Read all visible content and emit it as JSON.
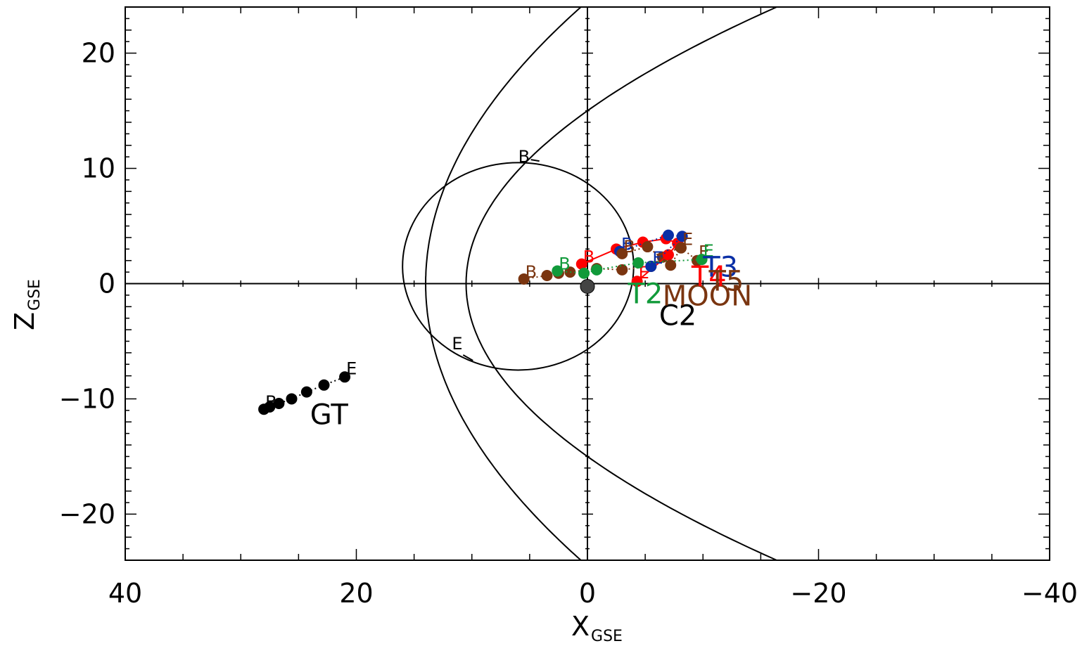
{
  "chart_data": {
    "type": "scatter",
    "title": "",
    "xlabel": "X",
    "xlabel_sub": "GSE",
    "ylabel": "Z",
    "ylabel_sub": "GSE",
    "xlim": [
      40,
      -40
    ],
    "ylim": [
      -24,
      24
    ],
    "x_reversed": true,
    "x_ticks": [
      40,
      20,
      0,
      -20,
      -40
    ],
    "x_tick_labels": [
      "40",
      "20",
      "0",
      "−20",
      "−40"
    ],
    "y_ticks": [
      20,
      10,
      0,
      -10,
      -20
    ],
    "y_tick_labels": [
      "20",
      "10",
      "0",
      "−10",
      "−20"
    ],
    "grid": false,
    "colors": {
      "black": "#000000",
      "blue": "#0a2fa6",
      "red": "#ff0000",
      "green": "#119a3a",
      "brown": "#7a3510"
    },
    "boundaries": [
      {
        "name": "bow_shock",
        "kind": "parabola",
        "nose_x": 14,
        "r_at_x0": 24.5
      },
      {
        "name": "magnetopause",
        "kind": "parabola",
        "nose_x": 10.5,
        "r_at_x0": 15
      }
    ],
    "orbits": [
      {
        "name": "C2",
        "center": [
          6,
          1.5
        ],
        "rx": 10,
        "ry": 9,
        "color": "black",
        "begin_label": "B",
        "begin": [
          5.5,
          11
        ],
        "end_label": "E",
        "end": [
          11,
          -5.7
        ]
      }
    ],
    "series": [
      {
        "name": "GT",
        "color": "black",
        "x": [
          28,
          27.5,
          26.7,
          25.6,
          24.3,
          22.8,
          21
        ],
        "y": [
          -10.9,
          -10.7,
          -10.4,
          -10,
          -9.4,
          -8.8,
          -8.1
        ],
        "begin_label": "B",
        "end_label": "E"
      },
      {
        "name": "MOON",
        "color": "brown",
        "x": [
          5.5,
          3.5,
          2.5,
          1.5,
          -0.8,
          -3,
          -5.5,
          -6.5,
          -8,
          -9.5
        ],
        "y": [
          0.4,
          0.7,
          0.9,
          1.0,
          1.3,
          1.2,
          1.5,
          2.3,
          3.2,
          2
        ],
        "begin_label": "B",
        "end_label": "E"
      },
      {
        "name": "T4",
        "color": "red",
        "x": [
          0.5,
          -2.5,
          -4.8,
          -6.8,
          -7.8,
          -7,
          -4.3
        ],
        "y": [
          1.7,
          3,
          3.6,
          3.9,
          3.5,
          2.5,
          0.2
        ],
        "begin_label": "B",
        "end_label": "E"
      },
      {
        "name": "T3",
        "color": "blue",
        "x": [
          -2.8,
          -7,
          -8.2,
          -5.5
        ],
        "y": [
          2.8,
          4.2,
          4.1,
          1.5
        ],
        "begin_label": "B",
        "end_label": "E"
      },
      {
        "name": "T2",
        "color": "green",
        "x": [
          2.6,
          0.3,
          -0.8,
          -4.4,
          -9.9
        ],
        "y": [
          1.1,
          0.9,
          1.2,
          1.8,
          2.1
        ],
        "begin_label": "B",
        "end_label": "E"
      },
      {
        "name": "T5",
        "color": "brown",
        "x": [
          -3,
          -5.2,
          -7.2,
          -8.1
        ],
        "y": [
          2.6,
          3.2,
          1.6,
          3.1
        ],
        "begin_label": "B",
        "end_label": "E"
      }
    ],
    "labels": [
      {
        "text": "GT",
        "at": [
          24,
          -12.2
        ],
        "color": "black"
      },
      {
        "text": "C2",
        "at": [
          -6.2,
          -3.6
        ],
        "color": "black"
      },
      {
        "text": "MOON",
        "at": [
          -6.5,
          -1.9
        ],
        "color": "brown"
      },
      {
        "text": "T4",
        "at": [
          -9,
          -0.2
        ],
        "color": "red"
      },
      {
        "text": "T3",
        "at": [
          -10,
          0.6
        ],
        "color": "blue"
      },
      {
        "text": "T5",
        "at": [
          -10.5,
          -0.6
        ],
        "color": "brown"
      },
      {
        "text": "T2",
        "at": [
          -3.5,
          -1.7
        ],
        "color": "green"
      }
    ]
  }
}
